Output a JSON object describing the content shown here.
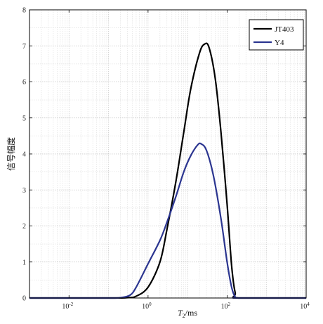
{
  "chart_data": {
    "type": "line",
    "xlabel": "T2/ms",
    "xlabel_main": "T",
    "xlabel_sub": "2",
    "xlabel_unit": "/ms",
    "ylabel": "信号幅度",
    "xscale": "log",
    "xlim": [
      0.001,
      10000
    ],
    "ylim": [
      0,
      8
    ],
    "grid": true,
    "legend_position": "top-right",
    "x_ticks": [
      {
        "value": 0.01,
        "base": "10",
        "exp": "-2"
      },
      {
        "value": 1,
        "base": "10",
        "exp": "0"
      },
      {
        "value": 100,
        "base": "10",
        "exp": "2"
      },
      {
        "value": 10000,
        "base": "10",
        "exp": "4"
      }
    ],
    "y_ticks": [
      "0",
      "1",
      "2",
      "3",
      "4",
      "5",
      "6",
      "7",
      "8"
    ],
    "series": [
      {
        "name": "JT403",
        "color": "#000000",
        "points": [
          [
            0.001,
            0
          ],
          [
            0.1,
            0
          ],
          [
            0.3,
            0.01
          ],
          [
            0.5,
            0.05
          ],
          [
            1,
            0.3
          ],
          [
            2,
            1.0
          ],
          [
            3,
            1.9
          ],
          [
            5,
            3.2
          ],
          [
            8,
            4.6
          ],
          [
            12,
            5.8
          ],
          [
            20,
            6.8
          ],
          [
            27,
            7.05
          ],
          [
            35,
            6.95
          ],
          [
            50,
            6.1
          ],
          [
            70,
            4.6
          ],
          [
            100,
            2.6
          ],
          [
            130,
            0.9
          ],
          [
            160,
            0.15
          ],
          [
            200,
            0
          ],
          [
            10000,
            0
          ]
        ]
      },
      {
        "name": "Y4",
        "color": "#2b3590",
        "points": [
          [
            0.001,
            0
          ],
          [
            0.1,
            0
          ],
          [
            0.2,
            0.01
          ],
          [
            0.35,
            0.08
          ],
          [
            0.5,
            0.3
          ],
          [
            1,
            0.95
          ],
          [
            2,
            1.6
          ],
          [
            3,
            2.1
          ],
          [
            5,
            2.8
          ],
          [
            8,
            3.5
          ],
          [
            12,
            3.95
          ],
          [
            18,
            4.25
          ],
          [
            22,
            4.28
          ],
          [
            30,
            4.1
          ],
          [
            45,
            3.4
          ],
          [
            70,
            2.2
          ],
          [
            100,
            1.0
          ],
          [
            130,
            0.3
          ],
          [
            160,
            0.03
          ],
          [
            200,
            0
          ],
          [
            10000,
            0
          ]
        ]
      }
    ]
  }
}
